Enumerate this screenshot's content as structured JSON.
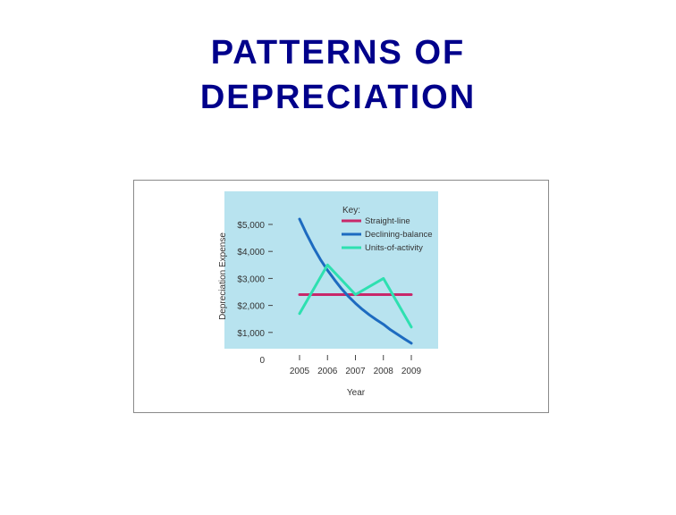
{
  "title": {
    "line1": "PATTERNS OF",
    "line2": "DEPRECIATION"
  },
  "colors": {
    "title": "#00008b",
    "plot_background": "#b8e3ef",
    "straight_line": "#c8286a",
    "declining_balance": "#1d6bc0",
    "units_of_activity": "#2ee0b0"
  },
  "chart_data": {
    "type": "line",
    "xlabel": "Year",
    "ylabel": "Depreciation Expense",
    "x": [
      2005,
      2006,
      2007,
      2008,
      2009
    ],
    "x_tick_labels": [
      "2005",
      "2006",
      "2007",
      "2008",
      "2009"
    ],
    "y_tick_values": [
      0,
      1000,
      2000,
      3000,
      4000,
      5000
    ],
    "y_tick_labels": [
      "0",
      "$1,000",
      "$2,000",
      "$3,000",
      "$4,000",
      "$5,000"
    ],
    "ylim": [
      0,
      5500
    ],
    "grid": false,
    "legend_title": "Key:",
    "legend_position": "top-right",
    "series": [
      {
        "name": "Straight-line",
        "key": "straight_line",
        "x": [
          2005,
          2009
        ],
        "values": [
          2400,
          2400
        ]
      },
      {
        "name": "Declining-balance",
        "key": "declining_balance",
        "x": [
          2005,
          2005.25,
          2005.5,
          2005.75,
          2006,
          2006.25,
          2006.5,
          2006.75,
          2007,
          2007.25,
          2007.5,
          2007.75,
          2008,
          2008.25,
          2008.5,
          2008.75,
          2009
        ],
        "values": [
          5200,
          4650,
          4150,
          3700,
          3300,
          2950,
          2620,
          2330,
          2080,
          1850,
          1650,
          1470,
          1300,
          1100,
          930,
          760,
          600
        ]
      },
      {
        "name": "Units-of-activity",
        "key": "units_of_activity",
        "x": [
          2005,
          2006,
          2007,
          2008,
          2009
        ],
        "values": [
          1700,
          3500,
          2400,
          3000,
          1200
        ]
      }
    ]
  }
}
